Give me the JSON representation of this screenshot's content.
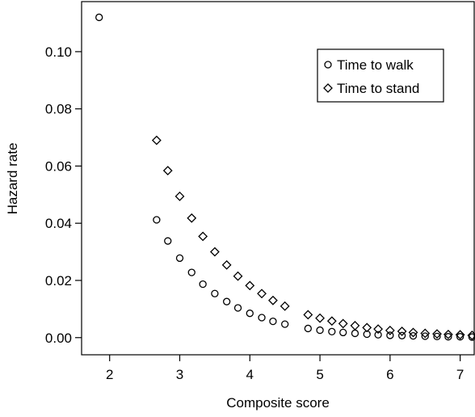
{
  "chart_data": {
    "type": "scatter",
    "xlabel": "Composite score",
    "ylabel": "Hazard rate",
    "xlim": [
      1.6,
      7.2
    ],
    "ylim": [
      -0.006,
      0.1175
    ],
    "xticks": [
      2,
      3,
      4,
      5,
      6,
      7
    ],
    "yticks": [
      0.0,
      0.02,
      0.04,
      0.06,
      0.08,
      0.1
    ],
    "ytick_labels": [
      "0.00",
      "0.02",
      "0.04",
      "0.06",
      "0.08",
      "0.10"
    ],
    "xtick_labels": [
      "2",
      "3",
      "4",
      "5",
      "6",
      "7"
    ],
    "grid": false,
    "legend_position": "top-right",
    "series": [
      {
        "name": "Time to walk",
        "marker": "circle",
        "x": [
          1.85,
          2.67,
          2.83,
          3.0,
          3.17,
          3.33,
          3.5,
          3.67,
          3.83,
          4.0,
          4.17,
          4.33,
          4.5,
          4.83,
          5.0,
          5.17,
          5.33,
          5.5,
          5.67,
          5.83,
          6.0,
          6.17,
          6.33,
          6.5,
          6.67,
          6.83,
          7.0,
          7.17
        ],
        "y": [
          0.112,
          0.0412,
          0.0338,
          0.0278,
          0.0228,
          0.0187,
          0.0154,
          0.0126,
          0.0104,
          0.0085,
          0.007,
          0.0057,
          0.0047,
          0.0032,
          0.0026,
          0.0021,
          0.0018,
          0.0015,
          0.0012,
          0.001,
          0.0008,
          0.0007,
          0.0006,
          0.0005,
          0.0004,
          0.0003,
          0.0003,
          0.0002
        ]
      },
      {
        "name": "Time to stand",
        "marker": "diamond",
        "x": [
          2.67,
          2.83,
          3.0,
          3.17,
          3.33,
          3.5,
          3.67,
          3.83,
          4.0,
          4.17,
          4.33,
          4.5,
          4.83,
          5.0,
          5.17,
          5.33,
          5.5,
          5.67,
          5.83,
          6.0,
          6.17,
          6.33,
          6.5,
          6.67,
          6.83,
          7.0,
          7.17
        ],
        "y": [
          0.069,
          0.0584,
          0.0494,
          0.0418,
          0.0354,
          0.03,
          0.0254,
          0.0215,
          0.0182,
          0.0154,
          0.013,
          0.011,
          0.008,
          0.0068,
          0.0058,
          0.0049,
          0.0042,
          0.0035,
          0.003,
          0.0025,
          0.0022,
          0.0018,
          0.0015,
          0.0013,
          0.0011,
          0.001,
          0.0008
        ]
      }
    ]
  }
}
